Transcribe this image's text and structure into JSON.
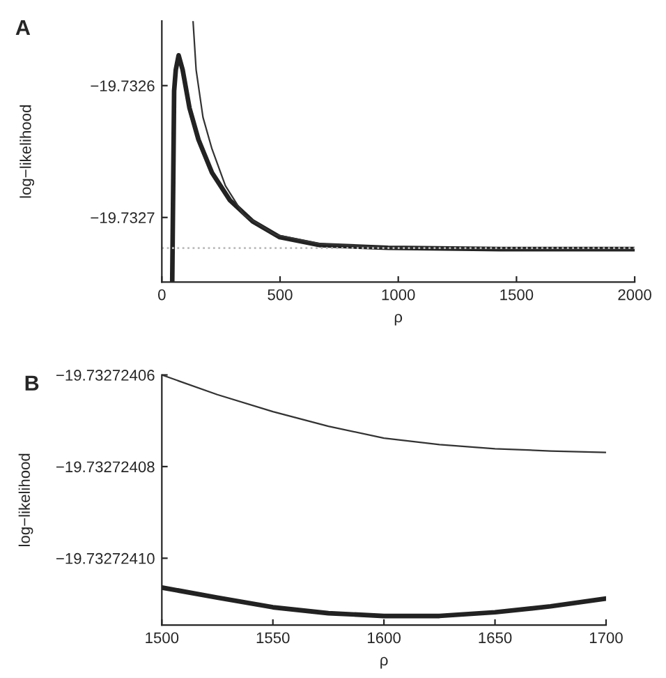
{
  "chart_data": [
    {
      "type": "line",
      "title": "A",
      "xlabel": "ρ",
      "ylabel": "log−likelihood",
      "xlim": [
        0,
        2000
      ],
      "xticks": [
        0,
        500,
        1000,
        1500,
        2000
      ],
      "ylim": [
        -19.732749,
        -19.732551
      ],
      "yticks": [
        {
          "value": -19.7326,
          "label": "−19.7326"
        },
        {
          "value": -19.7327,
          "label": "−19.7327"
        }
      ],
      "ref_lines": [
        {
          "axis": "y",
          "value": -19.7327232,
          "color": "#bbbbbb",
          "line_style": "dotted"
        }
      ],
      "series": [
        {
          "color": "#222222",
          "x": [
            44,
            52,
            59,
            71,
            88,
            117,
            155,
            212,
            288,
            384,
            499,
            670,
            957,
            1434,
            2000
          ],
          "values": [
            -19.732749,
            -19.732604,
            -19.732588,
            -19.732577,
            -19.732588,
            -19.732617,
            -19.732641,
            -19.732666,
            -19.732687,
            -19.732703,
            -19.732715,
            -19.732721,
            -19.732723,
            -19.732724,
            -19.732724
          ]
        },
        {
          "color": "#333333",
          "x": [
            132,
            145,
            174,
            212,
            269,
            346,
            479,
            670,
            957,
            1434,
            2000
          ],
          "values": [
            -19.732551,
            -19.732588,
            -19.732624,
            -19.732648,
            -19.732676,
            -19.732698,
            -19.732713,
            -19.73272,
            -19.732723,
            -19.732724,
            -19.732724
          ]
        }
      ]
    },
    {
      "type": "line",
      "title": "B",
      "xlabel": "ρ",
      "ylabel": "log−likelihood",
      "xlim": [
        1500,
        1700
      ],
      "xticks": [
        1500,
        1550,
        1600,
        1650,
        1700
      ],
      "ylim": [
        -19.7327241146,
        -19.73272406
      ],
      "yticks": [
        {
          "value": -19.73272406,
          "label": "−19.73272406"
        },
        {
          "value": -19.73272408,
          "label": "−19.73272408"
        },
        {
          "value": -19.7327241,
          "label": "−19.73272410"
        }
      ],
      "series": [
        {
          "color": "#222222",
          "x": [
            1500,
            1525,
            1550,
            1575,
            1600,
            1625,
            1650,
            1675,
            1700
          ],
          "values": [
            -19.7327241064,
            -19.7327241086,
            -19.7327241107,
            -19.732724112,
            -19.7327241126,
            -19.7327241126,
            -19.7327241118,
            -19.7327241105,
            -19.7327241088
          ]
        },
        {
          "color": "#333333",
          "x": [
            1500,
            1525,
            1550,
            1575,
            1600,
            1625,
            1650,
            1675,
            1700
          ],
          "values": [
            -19.73272406,
            -19.7327240643,
            -19.732724068,
            -19.7327240712,
            -19.7327240738,
            -19.7327240752,
            -19.7327240761,
            -19.7327240766,
            -19.7327240769
          ]
        }
      ]
    }
  ]
}
